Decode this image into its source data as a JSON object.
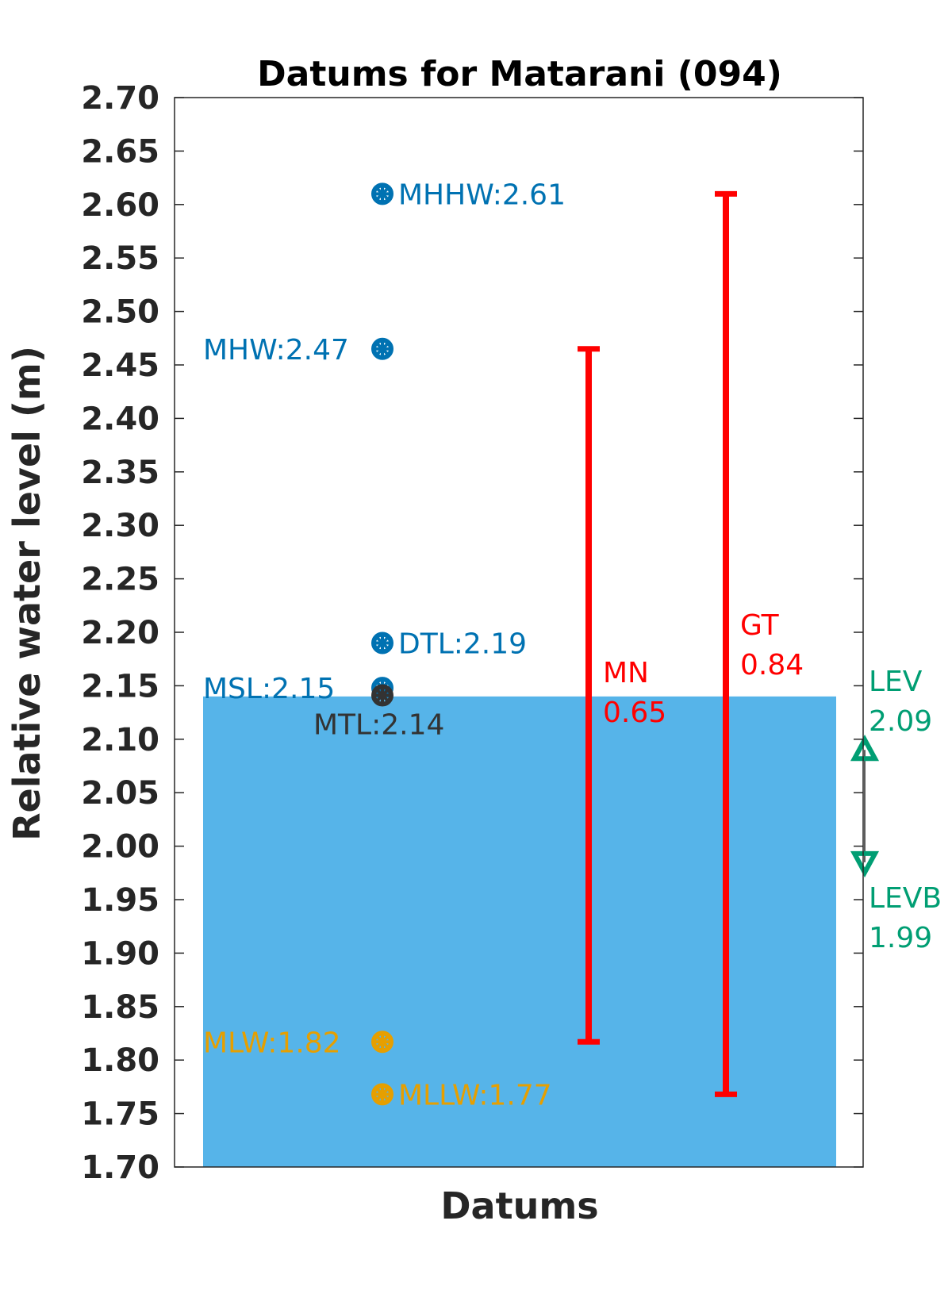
{
  "chart_data": {
    "type": "datum-levels",
    "title": "Datums for Matarani (094)",
    "xlabel": "Datums",
    "ylabel": "Relative water level (m)",
    "ylim": [
      1.7,
      2.7
    ],
    "yticks": [
      "1.70",
      "1.75",
      "1.80",
      "1.85",
      "1.90",
      "1.95",
      "2.00",
      "2.05",
      "2.10",
      "2.15",
      "2.20",
      "2.25",
      "2.30",
      "2.35",
      "2.40",
      "2.45",
      "2.50",
      "2.55",
      "2.60",
      "2.65",
      "2.70"
    ],
    "grid": false,
    "water_fill": {
      "level": 2.14,
      "color": "#56b4e9"
    },
    "datums": [
      {
        "label": "MHHW:2.61",
        "value": 2.61,
        "color": "#0072b2",
        "label_side": "right"
      },
      {
        "label": "MHW:2.47",
        "value": 2.465,
        "color": "#0072b2",
        "label_side": "left"
      },
      {
        "label": "DTL:2.19",
        "value": 2.19,
        "color": "#0072b2",
        "label_side": "right"
      },
      {
        "label": "MSL:2.15",
        "value": 2.148,
        "color": "#0072b2",
        "label_side": "left"
      },
      {
        "label": "MTL:2.14",
        "value": 2.141,
        "color": "#333333",
        "label_side": "below"
      },
      {
        "label": "MLW:1.82",
        "value": 1.817,
        "color": "#e69f00",
        "label_side": "left"
      },
      {
        "label": "MLLW:1.77",
        "value": 1.768,
        "color": "#e69f00",
        "label_side": "right"
      }
    ],
    "ranges": [
      {
        "name": "MN",
        "value": "0.65",
        "from": 1.817,
        "to": 2.465,
        "color": "#ff0000"
      },
      {
        "name": "GT",
        "value": "0.84",
        "from": 1.768,
        "to": 2.61,
        "color": "#ff0000"
      }
    ],
    "extremes": [
      {
        "name": "LEV",
        "value": "2.09",
        "level": 2.09,
        "marker": "triangle-up",
        "color": "#009e73"
      },
      {
        "name": "LEVB",
        "value": "1.99",
        "level": 1.985,
        "marker": "triangle-down",
        "color": "#009e73"
      }
    ]
  }
}
